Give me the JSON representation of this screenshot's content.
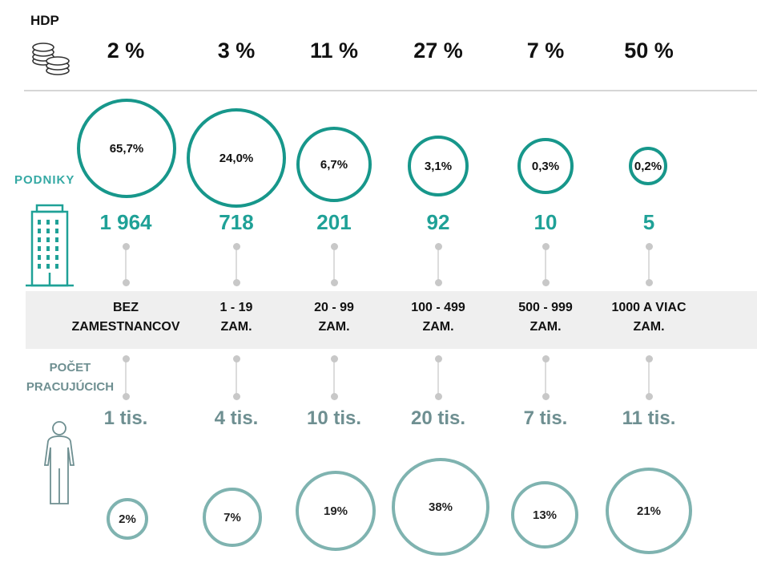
{
  "labels": {
    "hdp": "HDP",
    "podniky": "PODNIKY",
    "pocet_line1": "POČET",
    "pocet_line2": "PRACUJÚCICH"
  },
  "colors": {
    "enterprise": "#17978b",
    "workers": "#7fb3b0",
    "count_text": "#1fa197",
    "workers_text": "#6e8f91"
  },
  "chart_data": {
    "type": "table",
    "title": "",
    "categories": [
      {
        "line1": "BEZ",
        "line2": "ZAMESTNANCOV"
      },
      {
        "line1": "1 - 19",
        "line2": "ZAM."
      },
      {
        "line1": "20 - 99",
        "line2": "ZAM."
      },
      {
        "line1": "100 - 499",
        "line2": "ZAM."
      },
      {
        "line1": "500 - 999",
        "line2": "ZAM."
      },
      {
        "line1": "1000 A VIAC",
        "line2": "ZAM."
      }
    ],
    "hdp_share": [
      "2 %",
      "3 %",
      "11 %",
      "27 %",
      "7 %",
      "50 %"
    ],
    "enterprise_share": [
      "65,7%",
      "24,0%",
      "6,7%",
      "3,1%",
      "0,3%",
      "0,2%"
    ],
    "enterprise_count": [
      "1 964",
      "718",
      "201",
      "92",
      "10",
      "5"
    ],
    "workers": [
      "1 tis.",
      "4 tis.",
      "10 tis.",
      "20 tis.",
      "7 tis.",
      "11 tis."
    ],
    "workers_share": [
      "2%",
      "7%",
      "19%",
      "38%",
      "13%",
      "21%"
    ]
  }
}
